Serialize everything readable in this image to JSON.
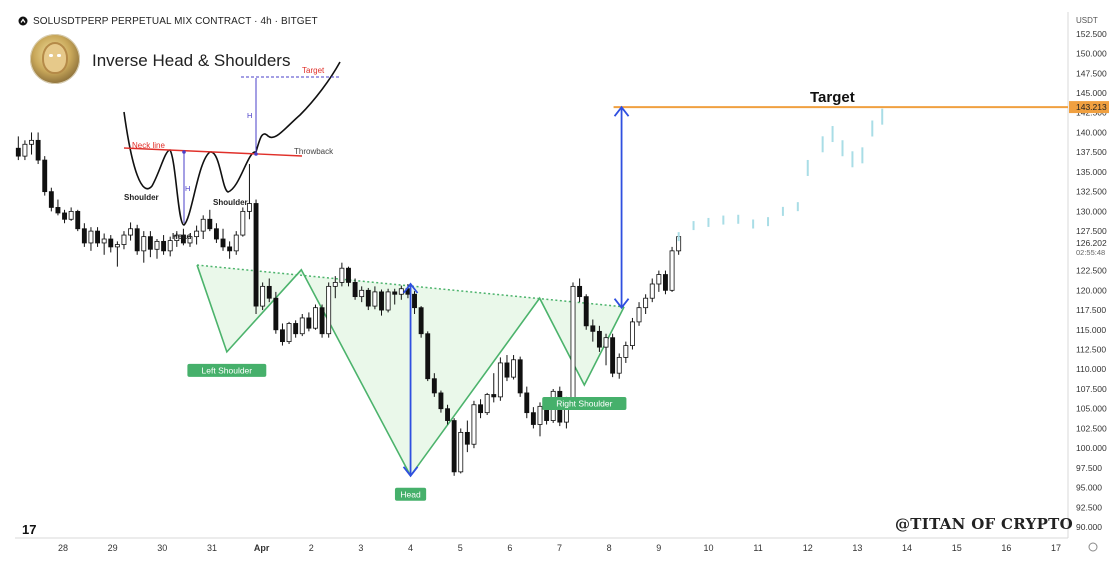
{
  "header": {
    "symbol_line": "SOLUSDTPERP PERPETUAL MIX CONTRACT · 4h · BITGET"
  },
  "pattern_title": "Inverse Head & Shoulders",
  "watermark": "@TITAN OF CRYPTO",
  "tv_logo": "17",
  "colors": {
    "up_candle": "#ffffff",
    "down_candle": "#111111",
    "pattern_fill": "#e6f7e6",
    "pattern_line": "#4cb36c",
    "neckline_dotted": "#4cb36c",
    "measure_arrow": "#2f4fe0",
    "target_line": "#f0a040",
    "projection": "#a9dde6",
    "label_bg": "#46b06b",
    "inset_neck": "#e0302a",
    "inset_measure": "#4a3fc8"
  },
  "chart_data": {
    "type": "candlestick",
    "timeframe": "4h",
    "currency": "USDT",
    "x_ticks": [
      "28",
      "29",
      "30",
      "31",
      "Apr",
      "2",
      "3",
      "4",
      "5",
      "6",
      "7",
      "8",
      "9",
      "10",
      "11",
      "12",
      "13",
      "14",
      "15",
      "16",
      "17"
    ],
    "y_ticks": [
      "152.500",
      "150.000",
      "147.500",
      "145.000",
      "142.500",
      "140.000",
      "137.500",
      "135.000",
      "132.500",
      "130.000",
      "127.500",
      "122.500",
      "120.000",
      "117.500",
      "115.000",
      "112.500",
      "110.000",
      "107.500",
      "105.000",
      "102.500",
      "100.000",
      "97.500",
      "95.000",
      "92.500",
      "90.000"
    ],
    "ylim": [
      89,
      154.5
    ],
    "current_price": {
      "value": "126.202",
      "countdown": "02:55:48"
    },
    "target_price": {
      "value": "143.213",
      "label": "Target"
    },
    "pattern_labels": [
      {
        "text": "Left Shoulder",
        "x": 3.3,
        "y": 112.2
      },
      {
        "text": "Head",
        "x": 7.0,
        "y": 96.5
      },
      {
        "text": "Right Shoulder",
        "x": 10.5,
        "y": 108.0
      }
    ],
    "neckline": {
      "start": [
        2.7,
        123.2
      ],
      "end": [
        11.3,
        117.9
      ]
    },
    "pattern_points": [
      [
        2.7,
        123.2
      ],
      [
        3.3,
        112.2
      ],
      [
        4.8,
        122.6
      ],
      [
        7.0,
        96.5
      ],
      [
        9.6,
        119.0
      ],
      [
        10.5,
        108.0
      ],
      [
        11.3,
        117.9
      ]
    ],
    "measure_arrows": [
      {
        "x": 7.0,
        "from": 96.5,
        "to": 120.8
      },
      {
        "x": 11.25,
        "from": 117.8,
        "to": 143.2
      }
    ],
    "projection_path": [
      [
        12.4,
        126.8
      ],
      [
        12.7,
        128.2
      ],
      [
        13.0,
        128.6
      ],
      [
        13.3,
        128.9
      ],
      [
        13.6,
        129.0
      ],
      [
        13.9,
        128.4
      ],
      [
        14.2,
        128.7
      ],
      [
        14.5,
        130.0
      ],
      [
        14.8,
        130.6
      ],
      [
        15.0,
        135.5
      ],
      [
        15.3,
        138.5
      ],
      [
        15.5,
        139.8
      ],
      [
        15.7,
        138.0
      ],
      [
        15.9,
        136.6
      ],
      [
        16.1,
        137.1
      ],
      [
        16.3,
        140.5
      ],
      [
        16.5,
        142.0
      ]
    ],
    "candles": [
      [
        138,
        139.5,
        136.5,
        137
      ],
      [
        137,
        139,
        136.5,
        138.5
      ],
      [
        138.5,
        140,
        137.2,
        139
      ],
      [
        139,
        140,
        136,
        136.5
      ],
      [
        136.5,
        137,
        132,
        132.5
      ],
      [
        132.5,
        133,
        130,
        130.5
      ],
      [
        130.5,
        131.5,
        129.5,
        129.8
      ],
      [
        129.8,
        130.2,
        128.5,
        129
      ],
      [
        129,
        130.5,
        128.8,
        130
      ],
      [
        130,
        130.2,
        127.5,
        127.8
      ],
      [
        127.8,
        128.5,
        125.5,
        126
      ],
      [
        126,
        128,
        125,
        127.5
      ],
      [
        127.5,
        128,
        125.5,
        126
      ],
      [
        126,
        127.2,
        124.5,
        126.5
      ],
      [
        126.5,
        127,
        124.8,
        125.5
      ],
      [
        125.5,
        126.2,
        123,
        125.8
      ],
      [
        125.8,
        127.5,
        125.2,
        127
      ],
      [
        127,
        128.6,
        126.3,
        127.8
      ],
      [
        127.8,
        128.3,
        124.5,
        125
      ],
      [
        125,
        127.5,
        123.5,
        126.8
      ],
      [
        126.8,
        127.5,
        124.2,
        125.2
      ],
      [
        125.2,
        126.5,
        124,
        126.2
      ],
      [
        126.2,
        127,
        124.5,
        125
      ],
      [
        125,
        126.8,
        124.3,
        126.3
      ],
      [
        126.3,
        127.5,
        125.5,
        127
      ],
      [
        127,
        127.8,
        125.7,
        126
      ],
      [
        126,
        127.2,
        125.5,
        126.8
      ],
      [
        126.8,
        128.2,
        125.8,
        127.5
      ],
      [
        127.5,
        129.5,
        126.5,
        129
      ],
      [
        129,
        130.2,
        127.5,
        127.8
      ],
      [
        127.8,
        128.5,
        126,
        126.5
      ],
      [
        126.5,
        127.8,
        125,
        125.5
      ],
      [
        125.5,
        126.2,
        124,
        125
      ],
      [
        125,
        127.5,
        124.5,
        127
      ],
      [
        127,
        130.5,
        126.8,
        130
      ],
      [
        130,
        136,
        129,
        131
      ],
      [
        131,
        131.5,
        117,
        118
      ],
      [
        118,
        121,
        117.5,
        120.5
      ],
      [
        120.5,
        121.5,
        118.5,
        119
      ],
      [
        119,
        119.8,
        114.5,
        115
      ],
      [
        115,
        115.8,
        113,
        113.5
      ],
      [
        113.5,
        116,
        113.2,
        115.8
      ],
      [
        115.8,
        116.2,
        114,
        114.5
      ],
      [
        114.5,
        117,
        114.2,
        116.5
      ],
      [
        116.5,
        117.2,
        114.8,
        115.2
      ],
      [
        115.2,
        118.2,
        115,
        117.8
      ],
      [
        117.8,
        118.2,
        114,
        114.5
      ],
      [
        114.5,
        121,
        114,
        120.5
      ],
      [
        120.5,
        121.8,
        119,
        121
      ],
      [
        121,
        123.5,
        120.5,
        122.8
      ],
      [
        122.8,
        123,
        120.5,
        121
      ],
      [
        121,
        121.5,
        118.8,
        119.2
      ],
      [
        119.2,
        120.5,
        118.5,
        120
      ],
      [
        120,
        120.3,
        117.5,
        118
      ],
      [
        118,
        120.5,
        117.6,
        119.8
      ],
      [
        119.8,
        120.1,
        116.8,
        117.5
      ],
      [
        117.5,
        120.2,
        117.2,
        119.8
      ],
      [
        119.8,
        120.2,
        118.2,
        119.5
      ],
      [
        119.5,
        120.6,
        118.8,
        120.2
      ],
      [
        120.2,
        120.8,
        119,
        119.5
      ],
      [
        119.5,
        119.9,
        117,
        117.8
      ],
      [
        117.8,
        118,
        114,
        114.5
      ],
      [
        114.5,
        114.8,
        108.5,
        108.8
      ],
      [
        108.8,
        109.5,
        106.5,
        107
      ],
      [
        107,
        107.3,
        104.5,
        105
      ],
      [
        105,
        105.5,
        103,
        103.5
      ],
      [
        103.5,
        103.8,
        96.5,
        97
      ],
      [
        97,
        102.5,
        96.8,
        102
      ],
      [
        102,
        103.5,
        99.5,
        100.5
      ],
      [
        100.5,
        106,
        100,
        105.5
      ],
      [
        105.5,
        106.2,
        103.8,
        104.5
      ],
      [
        104.5,
        107,
        104.2,
        106.8
      ],
      [
        106.8,
        109.5,
        105.8,
        106.5
      ],
      [
        106.5,
        111.5,
        106,
        110.8
      ],
      [
        110.8,
        111.8,
        108.5,
        109
      ],
      [
        109,
        111.8,
        108.7,
        111.2
      ],
      [
        111.2,
        111.6,
        106.5,
        107
      ],
      [
        107,
        107.8,
        103.8,
        104.5
      ],
      [
        104.5,
        105.2,
        102.5,
        103
      ],
      [
        103,
        105.8,
        101.5,
        105.3
      ],
      [
        105.3,
        106,
        103,
        103.5
      ],
      [
        103.5,
        107.5,
        103.2,
        107.2
      ],
      [
        107.2,
        107.8,
        102.8,
        103.3
      ],
      [
        103.3,
        106.5,
        102.5,
        106
      ],
      [
        106,
        121,
        105.5,
        120.5
      ],
      [
        120.5,
        121.5,
        118.5,
        119.2
      ],
      [
        119.2,
        119.5,
        115,
        115.5
      ],
      [
        115.5,
        116.3,
        113.5,
        114.8
      ],
      [
        114.8,
        115.5,
        112.2,
        112.8
      ],
      [
        112.8,
        114.5,
        110.5,
        114
      ],
      [
        114,
        114.5,
        109,
        109.5
      ],
      [
        109.5,
        112,
        108.8,
        111.5
      ],
      [
        111.5,
        113.5,
        110.8,
        113
      ],
      [
        113,
        116.5,
        112.5,
        116
      ],
      [
        116,
        118.5,
        115.5,
        117.8
      ],
      [
        117.8,
        119.5,
        117,
        119
      ],
      [
        119,
        121.5,
        118.5,
        120.8
      ],
      [
        120.8,
        122.5,
        119.8,
        122
      ],
      [
        122,
        122.5,
        119.5,
        120
      ],
      [
        120,
        125.5,
        119.8,
        125
      ],
      [
        125,
        127.2,
        124.5,
        126.8
      ]
    ]
  }
}
